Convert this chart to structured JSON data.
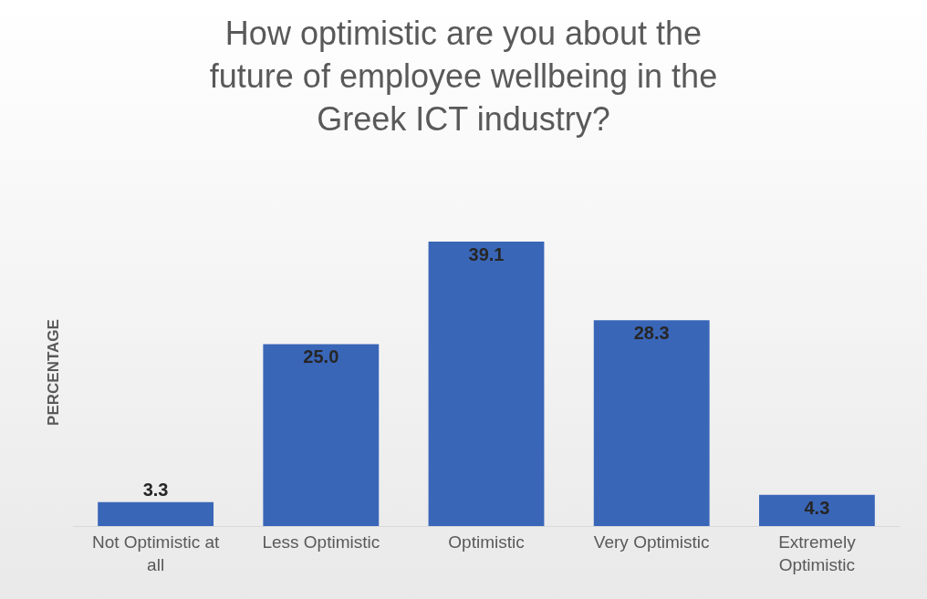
{
  "chart_data": {
    "type": "bar",
    "title": "How optimistic are you about the future of employee wellbeing in the Greek ICT industry?",
    "ylabel": "PERCENTAGE",
    "categories": [
      "Not Optimistic at all",
      "Less Optimistic",
      "Optimistic",
      "Very Optimistic",
      "Extremely Optimistic"
    ],
    "values": [
      3.3,
      25.0,
      39.1,
      28.3,
      4.3
    ],
    "value_labels": [
      "3.3",
      "25.0",
      "39.1",
      "28.3",
      "4.3"
    ],
    "color": "#3a66b8",
    "grid": false,
    "tick_labels": "x"
  }
}
